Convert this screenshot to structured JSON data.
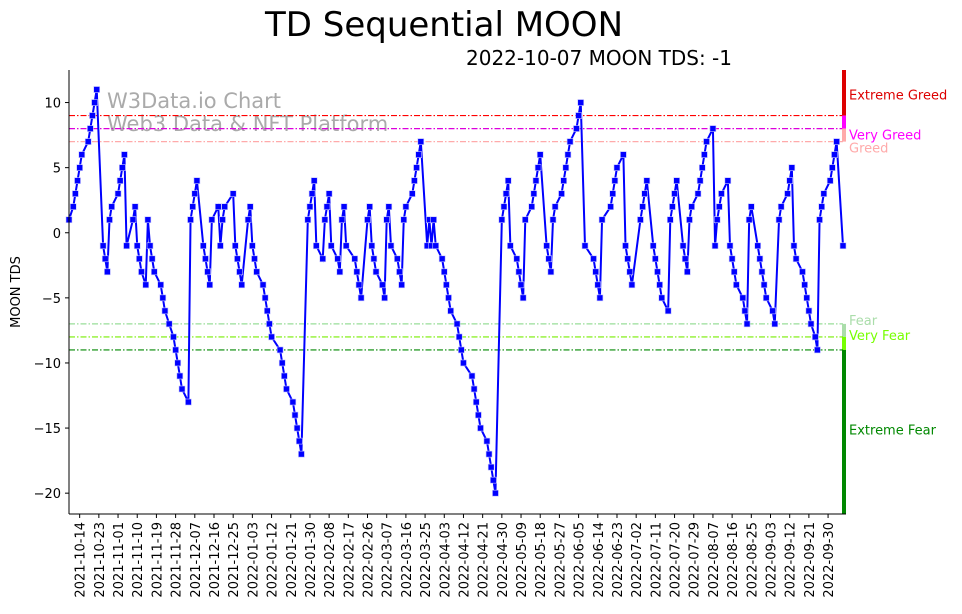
{
  "chart_data": {
    "type": "line",
    "title": "TD Sequential MOON",
    "subtitle": "2022-10-07 MOON TDS: -1",
    "xlabel": "",
    "ylabel": "MOON TDS",
    "x_start_date": "2021-10-09",
    "xlim_days": [
      0,
      363
    ],
    "ylim": [
      -21.6,
      12.5
    ],
    "yticks": [
      10,
      5,
      0,
      -5,
      -10,
      -15,
      -20
    ],
    "xtick_labels": [
      "2021-10-14",
      "2021-10-23",
      "2021-11-01",
      "2021-11-10",
      "2021-11-19",
      "2021-11-28",
      "2021-12-07",
      "2021-12-16",
      "2021-12-25",
      "2022-01-03",
      "2022-01-12",
      "2022-01-21",
      "2022-01-30",
      "2022-02-08",
      "2022-02-17",
      "2022-02-26",
      "2022-03-07",
      "2022-03-16",
      "2022-03-25",
      "2022-04-03",
      "2022-04-12",
      "2022-04-21",
      "2022-04-30",
      "2022-05-09",
      "2022-05-18",
      "2022-05-27",
      "2022-06-05",
      "2022-06-14",
      "2022-06-23",
      "2022-07-02",
      "2022-07-11",
      "2022-07-20",
      "2022-07-29",
      "2022-08-07",
      "2022-08-16",
      "2022-08-25",
      "2022-09-03",
      "2022-09-12",
      "2022-09-21",
      "2022-09-30"
    ],
    "xtick_first_day": 5,
    "xtick_step_days": 9,
    "watermark": [
      "W3Data.io Chart",
      "Web3 Data & NFT Platform"
    ],
    "series": [
      {
        "name": "MOON TDS",
        "color": "#0000ff",
        "points": [
          [
            0,
            1
          ],
          [
            2,
            2
          ],
          [
            3,
            3
          ],
          [
            4,
            4
          ],
          [
            5,
            5
          ],
          [
            6,
            6
          ],
          [
            9,
            7
          ],
          [
            10,
            8
          ],
          [
            11,
            9
          ],
          [
            12,
            10
          ],
          [
            13,
            11
          ],
          [
            16,
            -1
          ],
          [
            17,
            -2
          ],
          [
            18,
            -3
          ],
          [
            19,
            1
          ],
          [
            20,
            2
          ],
          [
            23,
            3
          ],
          [
            24,
            4
          ],
          [
            25,
            5
          ],
          [
            26,
            6
          ],
          [
            27,
            -1
          ],
          [
            30,
            1
          ],
          [
            31,
            2
          ],
          [
            32,
            -1
          ],
          [
            33,
            -2
          ],
          [
            34,
            -3
          ],
          [
            36,
            -4
          ],
          [
            37,
            1
          ],
          [
            38,
            -1
          ],
          [
            39,
            -2
          ],
          [
            40,
            -3
          ],
          [
            43,
            -4
          ],
          [
            44,
            -5
          ],
          [
            45,
            -6
          ],
          [
            47,
            -7
          ],
          [
            49,
            -8
          ],
          [
            50,
            -9
          ],
          [
            51,
            -10
          ],
          [
            52,
            -11
          ],
          [
            53,
            -12
          ],
          [
            56,
            -13
          ],
          [
            57,
            1
          ],
          [
            58,
            2
          ],
          [
            59,
            3
          ],
          [
            60,
            4
          ],
          [
            63,
            -1
          ],
          [
            64,
            -2
          ],
          [
            65,
            -3
          ],
          [
            66,
            -4
          ],
          [
            67,
            1
          ],
          [
            70,
            2
          ],
          [
            71,
            -1
          ],
          [
            72,
            1
          ],
          [
            73,
            2
          ],
          [
            77,
            3
          ],
          [
            78,
            -1
          ],
          [
            79,
            -2
          ],
          [
            80,
            -3
          ],
          [
            81,
            -4
          ],
          [
            84,
            1
          ],
          [
            85,
            2
          ],
          [
            86,
            -1
          ],
          [
            87,
            -2
          ],
          [
            88,
            -3
          ],
          [
            91,
            -4
          ],
          [
            92,
            -5
          ],
          [
            93,
            -6
          ],
          [
            94,
            -7
          ],
          [
            95,
            -8
          ],
          [
            99,
            -9
          ],
          [
            100,
            -10
          ],
          [
            101,
            -11
          ],
          [
            102,
            -12
          ],
          [
            105,
            -13
          ],
          [
            106,
            -14
          ],
          [
            107,
            -15
          ],
          [
            108,
            -16
          ],
          [
            109,
            -17
          ],
          [
            112,
            1
          ],
          [
            113,
            2
          ],
          [
            114,
            3
          ],
          [
            115,
            4
          ],
          [
            116,
            -1
          ],
          [
            119,
            -2
          ],
          [
            120,
            1
          ],
          [
            121,
            2
          ],
          [
            122,
            3
          ],
          [
            123,
            -1
          ],
          [
            126,
            -2
          ],
          [
            127,
            -3
          ],
          [
            128,
            1
          ],
          [
            129,
            2
          ],
          [
            130,
            -1
          ],
          [
            134,
            -2
          ],
          [
            135,
            -3
          ],
          [
            136,
            -4
          ],
          [
            137,
            -5
          ],
          [
            140,
            1
          ],
          [
            141,
            2
          ],
          [
            142,
            -1
          ],
          [
            143,
            -2
          ],
          [
            144,
            -3
          ],
          [
            147,
            -4
          ],
          [
            148,
            -5
          ],
          [
            149,
            1
          ],
          [
            150,
            2
          ],
          [
            151,
            -1
          ],
          [
            154,
            -2
          ],
          [
            155,
            -3
          ],
          [
            156,
            -4
          ],
          [
            157,
            1
          ],
          [
            158,
            2
          ],
          [
            161,
            3
          ],
          [
            162,
            4
          ],
          [
            163,
            5
          ],
          [
            164,
            6
          ],
          [
            165,
            7
          ],
          [
            168,
            -1
          ],
          [
            169,
            1
          ],
          [
            170,
            -1
          ],
          [
            171,
            1
          ],
          [
            172,
            -1
          ],
          [
            175,
            -2
          ],
          [
            176,
            -3
          ],
          [
            177,
            -4
          ],
          [
            178,
            -5
          ],
          [
            179,
            -6
          ],
          [
            182,
            -7
          ],
          [
            183,
            -8
          ],
          [
            184,
            -9
          ],
          [
            185,
            -10
          ],
          [
            189,
            -11
          ],
          [
            190,
            -12
          ],
          [
            191,
            -13
          ],
          [
            192,
            -14
          ],
          [
            193,
            -15
          ],
          [
            196,
            -16
          ],
          [
            197,
            -17
          ],
          [
            198,
            -18
          ],
          [
            199,
            -19
          ],
          [
            200,
            -20
          ],
          [
            203,
            1
          ],
          [
            204,
            2
          ],
          [
            205,
            3
          ],
          [
            206,
            4
          ],
          [
            207,
            -1
          ],
          [
            210,
            -2
          ],
          [
            211,
            -3
          ],
          [
            212,
            -4
          ],
          [
            213,
            -5
          ],
          [
            214,
            1
          ],
          [
            217,
            2
          ],
          [
            218,
            3
          ],
          [
            219,
            4
          ],
          [
            220,
            5
          ],
          [
            221,
            6
          ],
          [
            224,
            -1
          ],
          [
            225,
            -2
          ],
          [
            226,
            -3
          ],
          [
            227,
            1
          ],
          [
            228,
            2
          ],
          [
            231,
            3
          ],
          [
            232,
            4
          ],
          [
            233,
            5
          ],
          [
            234,
            6
          ],
          [
            235,
            7
          ],
          [
            238,
            8
          ],
          [
            239,
            9
          ],
          [
            240,
            10
          ],
          [
            242,
            -1
          ],
          [
            246,
            -2
          ],
          [
            247,
            -3
          ],
          [
            248,
            -4
          ],
          [
            249,
            -5
          ],
          [
            250,
            1
          ],
          [
            254,
            2
          ],
          [
            255,
            3
          ],
          [
            256,
            4
          ],
          [
            257,
            5
          ],
          [
            260,
            6
          ],
          [
            261,
            -1
          ],
          [
            262,
            -2
          ],
          [
            263,
            -3
          ],
          [
            264,
            -4
          ],
          [
            268,
            1
          ],
          [
            269,
            2
          ],
          [
            270,
            3
          ],
          [
            271,
            4
          ],
          [
            274,
            -1
          ],
          [
            275,
            -2
          ],
          [
            276,
            -3
          ],
          [
            277,
            -4
          ],
          [
            278,
            -5
          ],
          [
            281,
            -6
          ],
          [
            282,
            1
          ],
          [
            283,
            2
          ],
          [
            284,
            3
          ],
          [
            285,
            4
          ],
          [
            288,
            -1
          ],
          [
            289,
            -2
          ],
          [
            290,
            -3
          ],
          [
            291,
            1
          ],
          [
            292,
            2
          ],
          [
            295,
            3
          ],
          [
            296,
            4
          ],
          [
            297,
            5
          ],
          [
            298,
            6
          ],
          [
            299,
            7
          ],
          [
            302,
            8
          ],
          [
            303,
            -1
          ],
          [
            304,
            1
          ],
          [
            305,
            2
          ],
          [
            306,
            3
          ],
          [
            309,
            4
          ],
          [
            310,
            -1
          ],
          [
            311,
            -2
          ],
          [
            312,
            -3
          ],
          [
            313,
            -4
          ],
          [
            316,
            -5
          ],
          [
            317,
            -6
          ],
          [
            318,
            -7
          ],
          [
            319,
            1
          ],
          [
            320,
            2
          ],
          [
            323,
            -1
          ],
          [
            324,
            -2
          ],
          [
            325,
            -3
          ],
          [
            326,
            -4
          ],
          [
            327,
            -5
          ],
          [
            330,
            -6
          ],
          [
            331,
            -7
          ],
          [
            333,
            1
          ],
          [
            334,
            2
          ],
          [
            337,
            3
          ],
          [
            338,
            4
          ],
          [
            339,
            5
          ],
          [
            340,
            -1
          ],
          [
            341,
            -2
          ],
          [
            344,
            -3
          ],
          [
            345,
            -4
          ],
          [
            346,
            -5
          ],
          [
            347,
            -6
          ],
          [
            348,
            -7
          ],
          [
            350,
            -8
          ],
          [
            351,
            -9
          ],
          [
            352,
            1
          ],
          [
            353,
            2
          ],
          [
            354,
            3
          ],
          [
            357,
            4
          ],
          [
            358,
            5
          ],
          [
            359,
            6
          ],
          [
            360,
            7
          ],
          [
            363,
            -1
          ]
        ]
      }
    ],
    "zones": [
      {
        "label": "Extreme Greed",
        "level": 9,
        "from": 9,
        "to": 12.5,
        "color": "#dd0000",
        "line_color": "#ff0000"
      },
      {
        "label": "Very Greed",
        "level": 8,
        "from": 8,
        "to": 9,
        "color": "#ff00ff",
        "line_color": "#dd00dd"
      },
      {
        "label": "Greed",
        "level": 7,
        "from": 7,
        "to": 8,
        "color": "#ffaaaa",
        "line_color": "#ffaaaa"
      },
      {
        "label": "Fear",
        "level": -7,
        "from": -8,
        "to": -7,
        "color": "#aaddaa",
        "line_color": "#99dd99"
      },
      {
        "label": "Very Fear",
        "level": -8,
        "from": -9,
        "to": -8,
        "color": "#77ff00",
        "line_color": "#77ee00"
      },
      {
        "label": "Extreme Fear",
        "level": -9,
        "from": -21.6,
        "to": -9,
        "color": "#008800",
        "line_color": "#008800"
      }
    ]
  }
}
